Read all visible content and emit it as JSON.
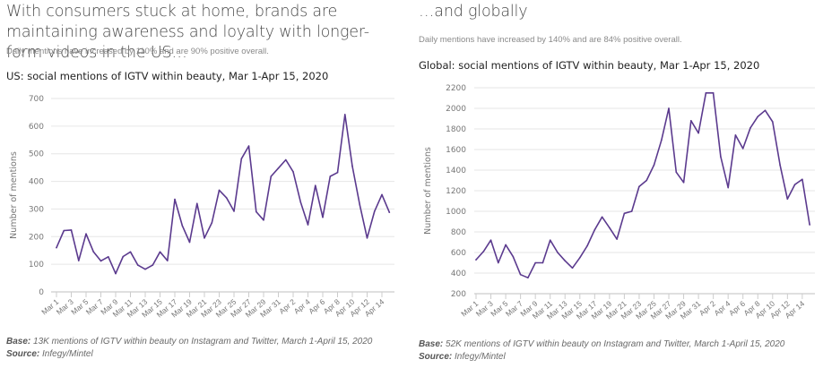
{
  "colors": {
    "line": "#5b3a8e",
    "grid": "#e6e6e6",
    "axis": "#cccccc",
    "tick_text": "#777777"
  },
  "panels": {
    "us": {
      "headline": "With consumers stuck at home, brands are maintaining awareness and loyalty with longer-form videos in the US…",
      "subtext": "Daily mentions have increased by 110% and are 90% positive overall.",
      "chart_title": "US: social mentions of IGTV within beauty, Mar 1-Apr 15, 2020",
      "base_label": "Base:",
      "base_text": " 13K mentions of IGTV within beauty on Instagram and Twitter, March 1-April 15, 2020",
      "source_label": "Source:",
      "source_text": " Infegy/Mintel"
    },
    "global": {
      "headline": "…and globally",
      "subtext": "Daily mentions have increased by 140% and are 84% positive overall.",
      "chart_title": "Global: social mentions of IGTV within beauty, Mar 1-Apr 15, 2020",
      "base_label": "Base:",
      "base_text": " 52K mentions of IGTV within beauty on Instagram and Twitter, March 1-April 15, 2020",
      "source_label": "Source:",
      "source_text": " Infegy/Mintel"
    }
  },
  "chart_data": [
    {
      "id": "us",
      "type": "line",
      "title": "US: social mentions of IGTV within beauty, Mar 1-Apr 15, 2020",
      "xlabel": "",
      "ylabel": "Number of mentions",
      "ylim": [
        0,
        700
      ],
      "yticks": [
        0,
        100,
        200,
        300,
        400,
        500,
        600,
        700
      ],
      "grid": true,
      "x_tick_labels": [
        "Mar 1",
        "Mar 3",
        "Mar 5",
        "Mar 7",
        "Mar 9",
        "Mar 11",
        "Mar 13",
        "Mar 15",
        "Mar 17",
        "Mar 19",
        "Mar 21",
        "Mar 23",
        "Mar 25",
        "Mar 27",
        "Mar 29",
        "Mar 31",
        "Apr 2",
        "Apr 4",
        "Apr 6",
        "Apr 8",
        "Apr 10",
        "Apr 12",
        "Apr 14"
      ],
      "x": [
        "Mar 1",
        "Mar 2",
        "Mar 3",
        "Mar 4",
        "Mar 5",
        "Mar 6",
        "Mar 7",
        "Mar 8",
        "Mar 9",
        "Mar 10",
        "Mar 11",
        "Mar 12",
        "Mar 13",
        "Mar 14",
        "Mar 15",
        "Mar 16",
        "Mar 17",
        "Mar 18",
        "Mar 19",
        "Mar 20",
        "Mar 21",
        "Mar 22",
        "Mar 23",
        "Mar 24",
        "Mar 25",
        "Mar 26",
        "Mar 27",
        "Mar 28",
        "Mar 29",
        "Mar 30",
        "Mar 31",
        "Apr 1",
        "Apr 2",
        "Apr 3",
        "Apr 4",
        "Apr 5",
        "Apr 6",
        "Apr 7",
        "Apr 8",
        "Apr 9",
        "Apr 10",
        "Apr 11",
        "Apr 12",
        "Apr 13",
        "Apr 14",
        "Apr 15"
      ],
      "series": [
        {
          "name": "Mentions",
          "values": [
            160,
            222,
            224,
            113,
            210,
            145,
            112,
            127,
            66,
            128,
            145,
            97,
            82,
            97,
            145,
            113,
            335,
            240,
            180,
            320,
            195,
            250,
            368,
            340,
            292,
            482,
            528,
            290,
            260,
            418,
            448,
            478,
            435,
            325,
            243,
            385,
            270,
            418,
            432,
            642,
            455,
            315,
            195,
            292,
            352,
            288
          ]
        }
      ]
    },
    {
      "id": "global",
      "type": "line",
      "title": "Global: social mentions of IGTV within beauty, Mar 1-Apr 15, 2020",
      "xlabel": "",
      "ylabel": "Number of mentions",
      "ylim": [
        200,
        2200
      ],
      "yticks": [
        200,
        400,
        600,
        800,
        1000,
        1200,
        1400,
        1600,
        1800,
        2000,
        2200
      ],
      "grid": true,
      "x_tick_labels": [
        "Mar 1",
        "Mar 3",
        "Mar 5",
        "Mar 7",
        "Mar 9",
        "Mar 11",
        "Mar 13",
        "Mar 15",
        "Mar 17",
        "Mar 19",
        "Mar 21",
        "Mar 23",
        "Mar 25",
        "Mar 27",
        "Mar 29",
        "Mar 31",
        "Apr 2",
        "Apr 4",
        "Apr 6",
        "Apr 8",
        "Apr 10",
        "Apr 12",
        "Apr 14"
      ],
      "x": [
        "Mar 1",
        "Mar 2",
        "Mar 3",
        "Mar 4",
        "Mar 5",
        "Mar 6",
        "Mar 7",
        "Mar 8",
        "Mar 9",
        "Mar 10",
        "Mar 11",
        "Mar 12",
        "Mar 13",
        "Mar 14",
        "Mar 15",
        "Mar 16",
        "Mar 17",
        "Mar 18",
        "Mar 19",
        "Mar 20",
        "Mar 21",
        "Mar 22",
        "Mar 23",
        "Mar 24",
        "Mar 25",
        "Mar 26",
        "Mar 27",
        "Mar 28",
        "Mar 29",
        "Mar 30",
        "Mar 31",
        "Apr 1",
        "Apr 2",
        "Apr 3",
        "Apr 4",
        "Apr 5",
        "Apr 6",
        "Apr 7",
        "Apr 8",
        "Apr 9",
        "Apr 10",
        "Apr 11",
        "Apr 12",
        "Apr 13",
        "Apr 14",
        "Apr 15"
      ],
      "series": [
        {
          "name": "Mentions",
          "values": [
            530,
            610,
            720,
            500,
            675,
            560,
            385,
            355,
            500,
            500,
            720,
            600,
            520,
            450,
            550,
            665,
            820,
            945,
            840,
            730,
            980,
            1000,
            1240,
            1300,
            1450,
            1690,
            2000,
            1380,
            1280,
            1880,
            1760,
            2150,
            2150,
            1530,
            1230,
            1740,
            1610,
            1810,
            1920,
            1980,
            1870,
            1450,
            1120,
            1260,
            1310,
            870
          ]
        }
      ]
    }
  ]
}
